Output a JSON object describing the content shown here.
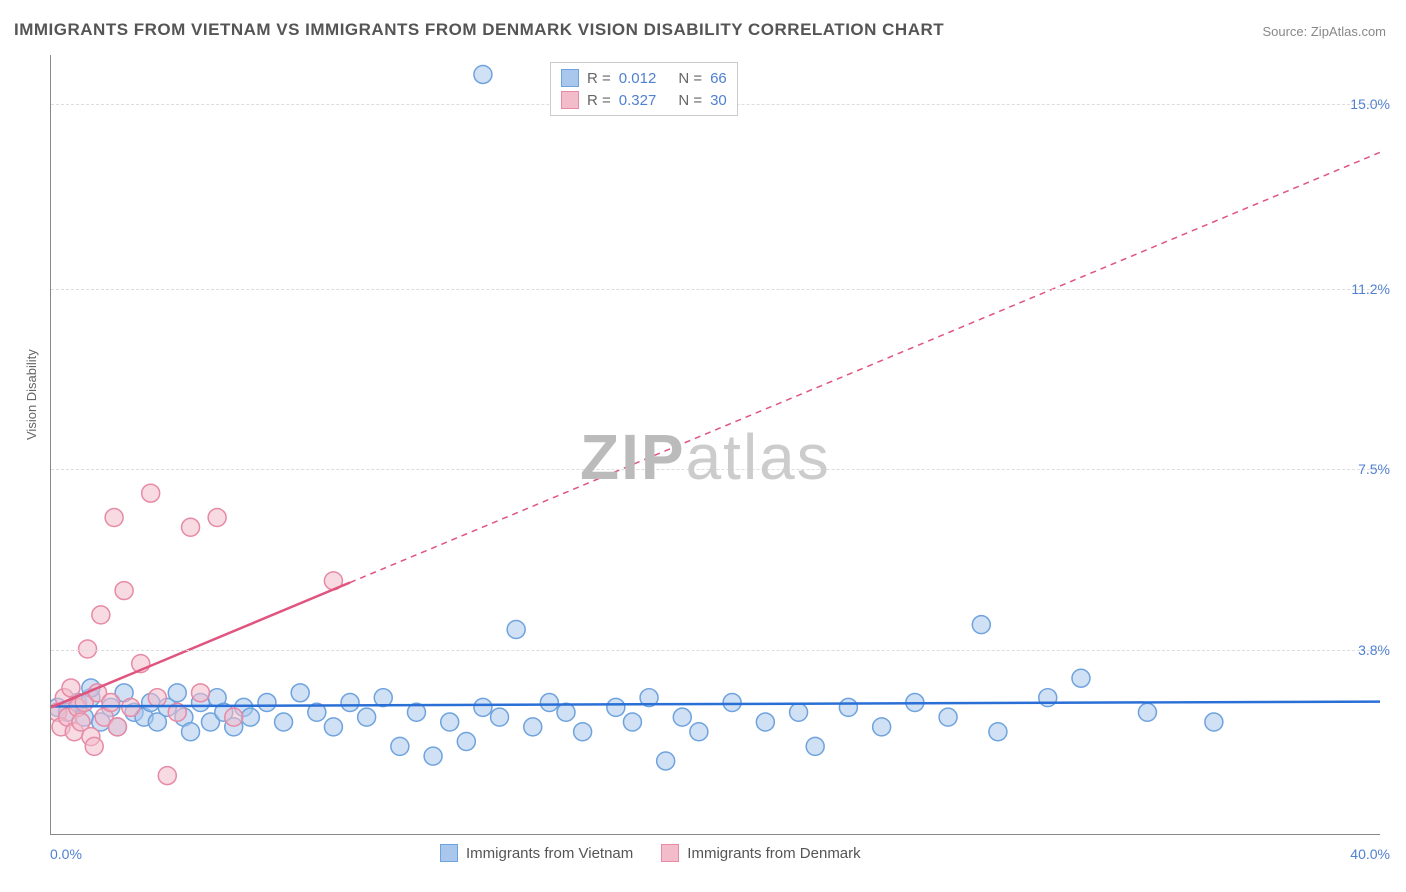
{
  "title": "IMMIGRANTS FROM VIETNAM VS IMMIGRANTS FROM DENMARK VISION DISABILITY CORRELATION CHART",
  "source": "Source: ZipAtlas.com",
  "watermark": {
    "bold": "ZIP",
    "light": "atlas"
  },
  "y_axis_label": "Vision Disability",
  "chart": {
    "type": "scatter",
    "xlim": [
      0,
      40
    ],
    "ylim": [
      0,
      16
    ],
    "x_ticks": [
      {
        "v": 0,
        "label": "0.0%"
      },
      {
        "v": 40,
        "label": "40.0%"
      }
    ],
    "y_ticks": [
      {
        "v": 3.8,
        "label": "3.8%"
      },
      {
        "v": 7.5,
        "label": "7.5%"
      },
      {
        "v": 11.2,
        "label": "11.2%"
      },
      {
        "v": 15.0,
        "label": "15.0%"
      }
    ],
    "grid_color": "#dddddd",
    "background_color": "#ffffff",
    "axis_color": "#888888",
    "marker_radius": 9,
    "marker_stroke_width": 1.5,
    "series": [
      {
        "name": "Immigrants from Vietnam",
        "color_fill": "#a9c7ec",
        "color_stroke": "#6fa3dd",
        "fill_opacity": 0.55,
        "R": "0.012",
        "N": "66",
        "trend": {
          "x1": 0,
          "y1": 2.62,
          "x2": 40,
          "y2": 2.72,
          "color": "#2a6fd6",
          "width": 2.5,
          "solid_until_x": 40
        },
        "points": [
          [
            0.2,
            2.6
          ],
          [
            0.5,
            2.5
          ],
          [
            0.8,
            2.7
          ],
          [
            1.0,
            2.4
          ],
          [
            1.2,
            2.8
          ],
          [
            1.2,
            3.0
          ],
          [
            1.5,
            2.3
          ],
          [
            1.8,
            2.6
          ],
          [
            2.0,
            2.2
          ],
          [
            2.2,
            2.9
          ],
          [
            2.5,
            2.5
          ],
          [
            2.8,
            2.4
          ],
          [
            3.0,
            2.7
          ],
          [
            3.2,
            2.3
          ],
          [
            3.5,
            2.6
          ],
          [
            3.8,
            2.9
          ],
          [
            4.0,
            2.4
          ],
          [
            4.2,
            2.1
          ],
          [
            4.5,
            2.7
          ],
          [
            4.8,
            2.3
          ],
          [
            5.0,
            2.8
          ],
          [
            5.2,
            2.5
          ],
          [
            5.5,
            2.2
          ],
          [
            5.8,
            2.6
          ],
          [
            6.0,
            2.4
          ],
          [
            6.5,
            2.7
          ],
          [
            7.0,
            2.3
          ],
          [
            7.5,
            2.9
          ],
          [
            8.0,
            2.5
          ],
          [
            8.5,
            2.2
          ],
          [
            9.0,
            2.7
          ],
          [
            9.5,
            2.4
          ],
          [
            10.0,
            2.8
          ],
          [
            10.5,
            1.8
          ],
          [
            11.0,
            2.5
          ],
          [
            11.5,
            1.6
          ],
          [
            12.0,
            2.3
          ],
          [
            12.5,
            1.9
          ],
          [
            13.0,
            2.6
          ],
          [
            13.0,
            15.6
          ],
          [
            13.5,
            2.4
          ],
          [
            14.0,
            4.2
          ],
          [
            14.5,
            2.2
          ],
          [
            15.0,
            2.7
          ],
          [
            15.5,
            2.5
          ],
          [
            16.0,
            2.1
          ],
          [
            17.0,
            2.6
          ],
          [
            17.5,
            2.3
          ],
          [
            18.0,
            2.8
          ],
          [
            18.5,
            1.5
          ],
          [
            19.0,
            2.4
          ],
          [
            19.5,
            2.1
          ],
          [
            20.5,
            2.7
          ],
          [
            21.5,
            2.3
          ],
          [
            22.5,
            2.5
          ],
          [
            23.0,
            1.8
          ],
          [
            24.0,
            2.6
          ],
          [
            25.0,
            2.2
          ],
          [
            26.0,
            2.7
          ],
          [
            27.0,
            2.4
          ],
          [
            28.0,
            4.3
          ],
          [
            28.5,
            2.1
          ],
          [
            30.0,
            2.8
          ],
          [
            31.0,
            3.2
          ],
          [
            33.0,
            2.5
          ],
          [
            35.0,
            2.3
          ]
        ]
      },
      {
        "name": "Immigrants from Denmark",
        "color_fill": "#f3bccb",
        "color_stroke": "#e68aa5",
        "fill_opacity": 0.55,
        "R": "0.327",
        "N": "30",
        "trend": {
          "x1": 0,
          "y1": 2.6,
          "x2": 40,
          "y2": 14.0,
          "color": "#e0557f",
          "width": 2.5,
          "solid_until_x": 9
        },
        "points": [
          [
            0.2,
            2.5
          ],
          [
            0.3,
            2.2
          ],
          [
            0.4,
            2.8
          ],
          [
            0.5,
            2.4
          ],
          [
            0.6,
            3.0
          ],
          [
            0.7,
            2.1
          ],
          [
            0.8,
            2.6
          ],
          [
            0.9,
            2.3
          ],
          [
            1.0,
            2.7
          ],
          [
            1.1,
            3.8
          ],
          [
            1.2,
            2.0
          ],
          [
            1.3,
            1.8
          ],
          [
            1.4,
            2.9
          ],
          [
            1.5,
            4.5
          ],
          [
            1.6,
            2.4
          ],
          [
            1.8,
            2.7
          ],
          [
            1.9,
            6.5
          ],
          [
            2.0,
            2.2
          ],
          [
            2.2,
            5.0
          ],
          [
            2.4,
            2.6
          ],
          [
            2.7,
            3.5
          ],
          [
            3.0,
            7.0
          ],
          [
            3.2,
            2.8
          ],
          [
            3.5,
            1.2
          ],
          [
            3.8,
            2.5
          ],
          [
            4.2,
            6.3
          ],
          [
            4.5,
            2.9
          ],
          [
            5.0,
            6.5
          ],
          [
            5.5,
            2.4
          ],
          [
            8.5,
            5.2
          ]
        ]
      }
    ]
  },
  "legend_bottom": [
    {
      "label": "Immigrants from Vietnam",
      "fill": "#a9c7ec",
      "stroke": "#6fa3dd"
    },
    {
      "label": "Immigrants from Denmark",
      "fill": "#f3bccb",
      "stroke": "#e68aa5"
    }
  ]
}
